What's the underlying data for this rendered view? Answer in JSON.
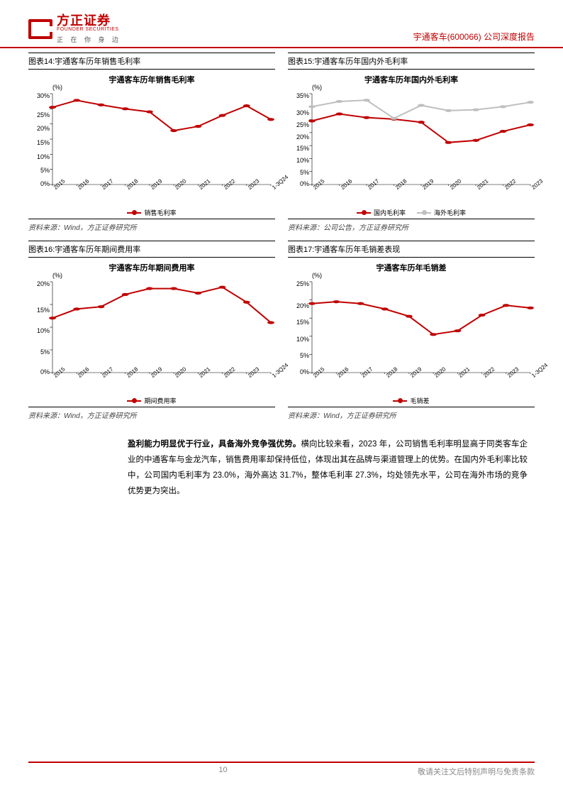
{
  "header": {
    "logo_cn": "方正证券",
    "logo_en": "FOUNDER SECURITIES",
    "logo_sub": "正 在 你 身 边",
    "right": "宇通客车(600066) 公司深度报告"
  },
  "colors": {
    "brand_red": "#c00000",
    "series_red": "#c00000",
    "series_grey": "#bfbfbf",
    "axis": "#000000",
    "text": "#000000"
  },
  "charts": [
    {
      "caption": "图表14:宇通客车历年销售毛利率",
      "title": "宇通客车历年销售毛利率",
      "ylabel": "(%)",
      "ymin": 0,
      "ymax": 30,
      "ystep": 5,
      "categories": [
        "2015",
        "2016",
        "2017",
        "2018",
        "2019",
        "2020",
        "2021",
        "2022",
        "2023",
        "1-3Q24"
      ],
      "series": [
        {
          "name": "销售毛利率",
          "color": "#c00000",
          "values": [
            25.5,
            27.8,
            26.3,
            25.0,
            24.0,
            17.8,
            19.2,
            22.8,
            26.0,
            21.5
          ]
        }
      ],
      "source": "资料来源：Wind，方正证券研究所"
    },
    {
      "caption": "图表15:宇通客车历年国内外毛利率",
      "title": "宇通客车历年国内外毛利率",
      "ylabel": "(%)",
      "ymin": 0,
      "ymax": 35,
      "ystep": 5,
      "categories": [
        "2015",
        "2016",
        "2017",
        "2018",
        "2019",
        "2020",
        "2021",
        "2022",
        "2023"
      ],
      "series": [
        {
          "name": "国内毛利率",
          "color": "#c00000",
          "values": [
            24.5,
            27.2,
            25.8,
            25.2,
            24.0,
            16.2,
            17.0,
            20.5,
            23.0
          ]
        },
        {
          "name": "海外毛利率",
          "color": "#bfbfbf",
          "values": [
            30.0,
            32.0,
            32.5,
            25.5,
            30.5,
            28.5,
            28.8,
            30.0,
            31.7
          ]
        }
      ],
      "source": "资料来源：公司公告，方正证券研究所"
    },
    {
      "caption": "图表16:宇通客车历年期间费用率",
      "title": "宇通客车历年期间费用率",
      "ylabel": "(%)",
      "ymin": 0,
      "ymax": 20,
      "ystep": 5,
      "categories": [
        "2015",
        "2016",
        "2017",
        "2018",
        "2019",
        "2020",
        "2021",
        "2022",
        "2023",
        "1-3Q24"
      ],
      "series": [
        {
          "name": "期间费用率",
          "color": "#c00000",
          "values": [
            12.0,
            14.0,
            14.5,
            17.2,
            18.5,
            18.5,
            17.5,
            18.8,
            15.5,
            11.0
          ]
        }
      ],
      "source": "资料来源：Wind，方正证券研究所"
    },
    {
      "caption": "图表17:宇通客车历年毛销差表现",
      "title": "宇通客车历年毛销差",
      "ylabel": "(%)",
      "ymin": 0,
      "ymax": 25,
      "ystep": 5,
      "categories": [
        "2015",
        "2016",
        "2017",
        "2018",
        "2019",
        "2020",
        "2021",
        "2022",
        "2023",
        "1-3Q24"
      ],
      "series": [
        {
          "name": "毛销差",
          "color": "#c00000",
          "values": [
            19.0,
            19.5,
            19.0,
            17.5,
            15.5,
            10.5,
            11.5,
            15.8,
            18.5,
            17.8
          ]
        }
      ],
      "source": "资料来源：Wind，方正证券研究所"
    }
  ],
  "body": {
    "bold": "盈利能力明显优于行业，具备海外竞争强优势。",
    "text": "横向比较来看，2023 年，公司销售毛利率明显高于同类客车企业的中通客车与金龙汽车，销售费用率却保持低位，体现出其在品牌与渠道管理上的优势。在国内外毛利率比较中，公司国内毛利率为 23.0%，海外高达 31.7%，整体毛利率 27.3%，均处领先水平，公司在海外市场的竞争优势更为突出。"
  },
  "footer": {
    "page": "10",
    "disclaimer": "敬请关注文后特别声明与免责条款"
  }
}
